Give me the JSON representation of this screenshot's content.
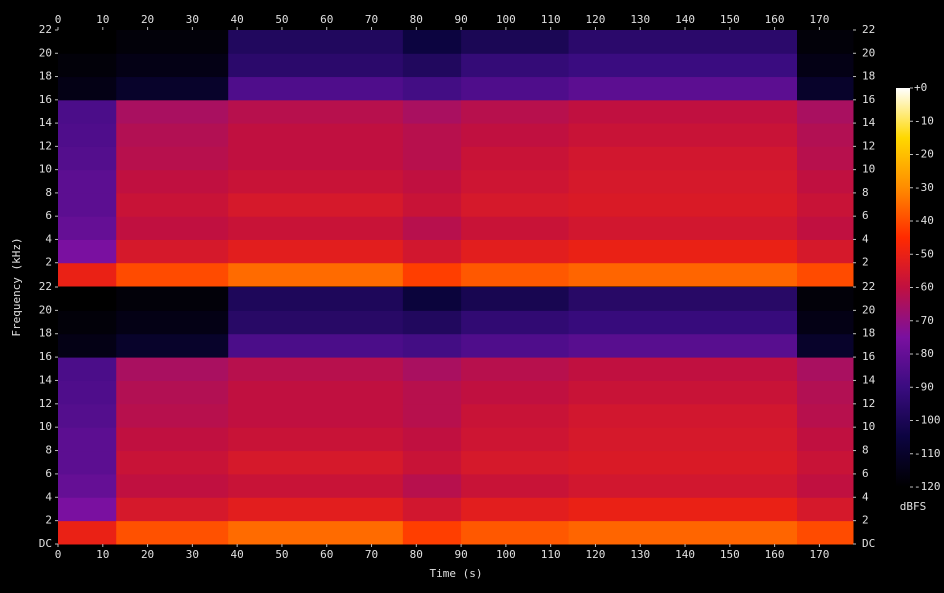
{
  "y_label": "Frequency (kHz)",
  "x_label": "Time (s)",
  "colorbar": {
    "label": "dBFS",
    "clim": [
      -120,
      0
    ],
    "colormap": [
      "#000000",
      "#0c0440",
      "#3a0c80",
      "#7a10a0",
      "#c01040",
      "#ff2a00",
      "#ff8c00",
      "#ffd800",
      "#ffffff"
    ],
    "ticks": [
      {
        "value": 0,
        "label": "+0"
      },
      -10,
      -20,
      -30,
      -40,
      -50,
      -60,
      -70,
      -80,
      -90,
      -100,
      -110,
      -120
    ]
  },
  "chart_data": [
    {
      "type": "heatmap",
      "x_bins": [
        0,
        13,
        38,
        77,
        90,
        114,
        165,
        177.5
      ],
      "y_bins": [
        0,
        2,
        4,
        6,
        8,
        10,
        12,
        14,
        16,
        18,
        20,
        22
      ],
      "values": [
        [
          -50,
          -75,
          -80,
          -82,
          -82,
          -84,
          -85,
          -86,
          -115,
          -118,
          -120
        ],
        [
          -40,
          -55,
          -60,
          -58,
          -60,
          -62,
          -63,
          -65,
          -110,
          -115,
          -118
        ],
        [
          -35,
          -52,
          -58,
          -55,
          -58,
          -60,
          -60,
          -62,
          -85,
          -95,
          -98
        ],
        [
          -42,
          -56,
          -62,
          -58,
          -60,
          -62,
          -62,
          -65,
          -88,
          -98,
          -105
        ],
        [
          -38,
          -52,
          -58,
          -55,
          -57,
          -58,
          -60,
          -62,
          -85,
          -92,
          -100
        ],
        [
          -36,
          -50,
          -56,
          -54,
          -55,
          -56,
          -58,
          -60,
          -82,
          -90,
          -95
        ],
        [
          -40,
          -55,
          -60,
          -58,
          -60,
          -62,
          -63,
          -65,
          -110,
          -115,
          -118
        ]
      ],
      "xlim": [
        0,
        177.5
      ],
      "ylim": [
        0,
        22
      ],
      "xticks": [
        0,
        10,
        20,
        30,
        40,
        50,
        60,
        70,
        80,
        90,
        100,
        110,
        120,
        130,
        140,
        150,
        160,
        170
      ],
      "yticks": [
        2,
        4,
        6,
        8,
        10,
        12,
        14,
        16,
        18,
        20,
        22
      ]
    },
    {
      "type": "heatmap",
      "x_bins": [
        0,
        13,
        38,
        77,
        90,
        114,
        165,
        177.5
      ],
      "y_bins": [
        0,
        2,
        4,
        6,
        8,
        10,
        12,
        14,
        16,
        18,
        20,
        22
      ],
      "values": [
        [
          -50,
          -75,
          -80,
          -82,
          -82,
          -84,
          -85,
          -86,
          -115,
          -118,
          -120
        ],
        [
          -39,
          -55,
          -60,
          -58,
          -60,
          -62,
          -63,
          -65,
          -110,
          -115,
          -118
        ],
        [
          -35,
          -52,
          -58,
          -55,
          -58,
          -60,
          -60,
          -62,
          -86,
          -96,
          -99
        ],
        [
          -42,
          -56,
          -62,
          -58,
          -60,
          -62,
          -62,
          -65,
          -88,
          -98,
          -106
        ],
        [
          -38,
          -52,
          -58,
          -55,
          -57,
          -58,
          -60,
          -62,
          -85,
          -93,
          -101
        ],
        [
          -36,
          -50,
          -56,
          -54,
          -55,
          -56,
          -58,
          -60,
          -83,
          -91,
          -96
        ],
        [
          -40,
          -55,
          -60,
          -58,
          -60,
          -62,
          -63,
          -65,
          -110,
          -115,
          -118
        ]
      ],
      "xlim": [
        0,
        177.5
      ],
      "ylim": [
        0,
        22
      ],
      "xticks": [
        0,
        10,
        20,
        30,
        40,
        50,
        60,
        70,
        80,
        90,
        100,
        110,
        120,
        130,
        140,
        150,
        160,
        170
      ],
      "yticks": [
        {
          "value": 0,
          "label": "DC"
        },
        2,
        4,
        6,
        8,
        10,
        12,
        14,
        16,
        18,
        20,
        22
      ]
    }
  ]
}
